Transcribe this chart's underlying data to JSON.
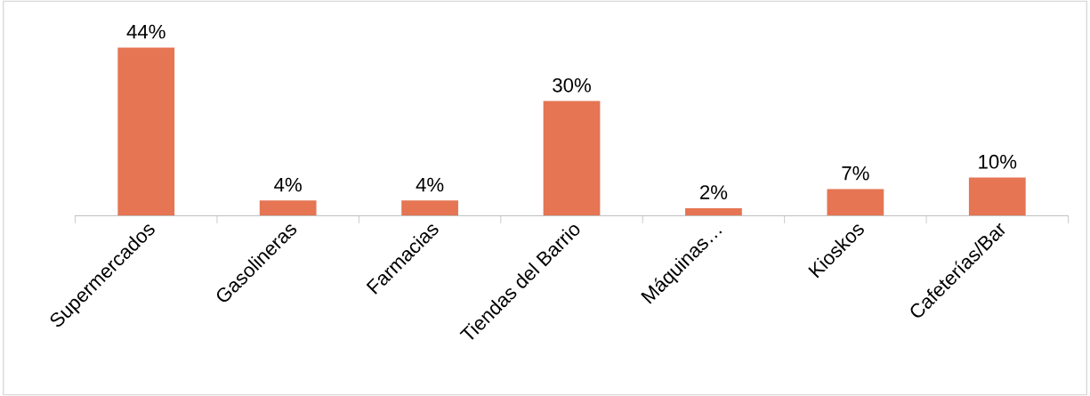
{
  "chart_data": {
    "type": "bar",
    "categories": [
      "Supermercados",
      "Gasolineras",
      "Farmacias",
      "Tiendas del Barrio",
      "Máquinas…",
      "Kioskos",
      "Cafeterías/Bar"
    ],
    "values": [
      44,
      4,
      4,
      30,
      2,
      7,
      10
    ],
    "value_labels": [
      "44%",
      "4%",
      "4%",
      "30%",
      "2%",
      "7%",
      "10%"
    ],
    "color": "#e57553",
    "tick_labels": "x"
  }
}
